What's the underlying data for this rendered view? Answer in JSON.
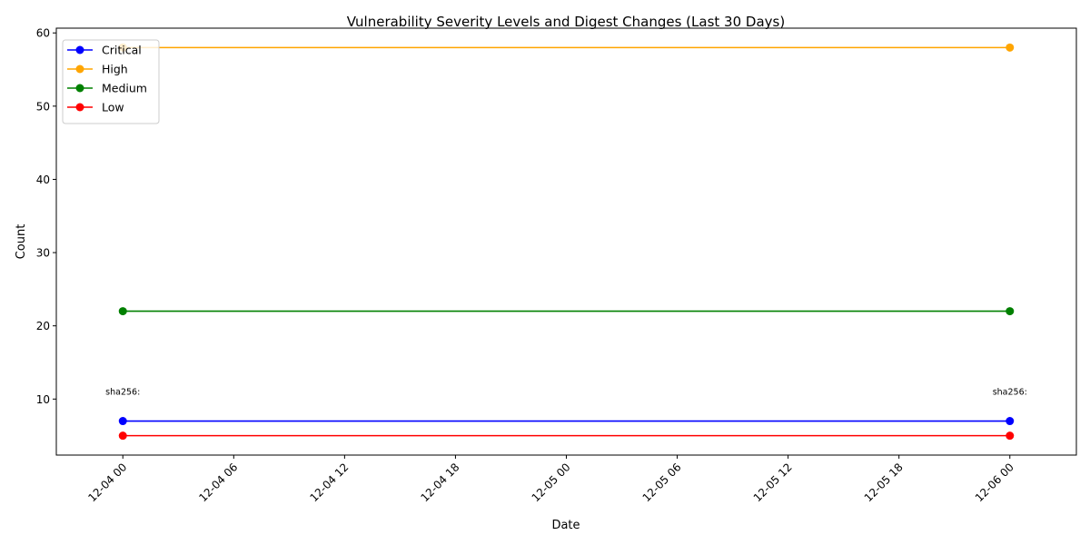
{
  "chart_data": {
    "type": "line",
    "title": "Vulnerability Severity Levels and Digest Changes (Last 30 Days)",
    "xlabel": "Date",
    "ylabel": "Count",
    "x": [
      "12-04 00",
      "12-06 00"
    ],
    "x_ticks": [
      "12-04 00",
      "12-04 06",
      "12-04 12",
      "12-04 18",
      "12-05 00",
      "12-05 06",
      "12-05 12",
      "12-05 18",
      "12-06 00"
    ],
    "y_ticks": [
      10,
      20,
      30,
      40,
      50,
      60
    ],
    "xlim_hours": [
      -3.6,
      51.6
    ],
    "ylim": [
      2.35,
      60.65
    ],
    "series": [
      {
        "name": "Critical",
        "color": "#0000ff",
        "values": [
          7,
          7
        ]
      },
      {
        "name": "High",
        "color": "#ffa500",
        "values": [
          58,
          58
        ]
      },
      {
        "name": "Medium",
        "color": "#008000",
        "values": [
          22,
          22
        ]
      },
      {
        "name": "Low",
        "color": "#ff0000",
        "values": [
          5,
          5
        ]
      }
    ],
    "annotations": [
      {
        "text": "sha256:",
        "x_index": 0,
        "y": 11
      },
      {
        "text": "sha256:",
        "x_index": 1,
        "y": 11
      }
    ],
    "legend_position": "top-left",
    "grid": false
  }
}
